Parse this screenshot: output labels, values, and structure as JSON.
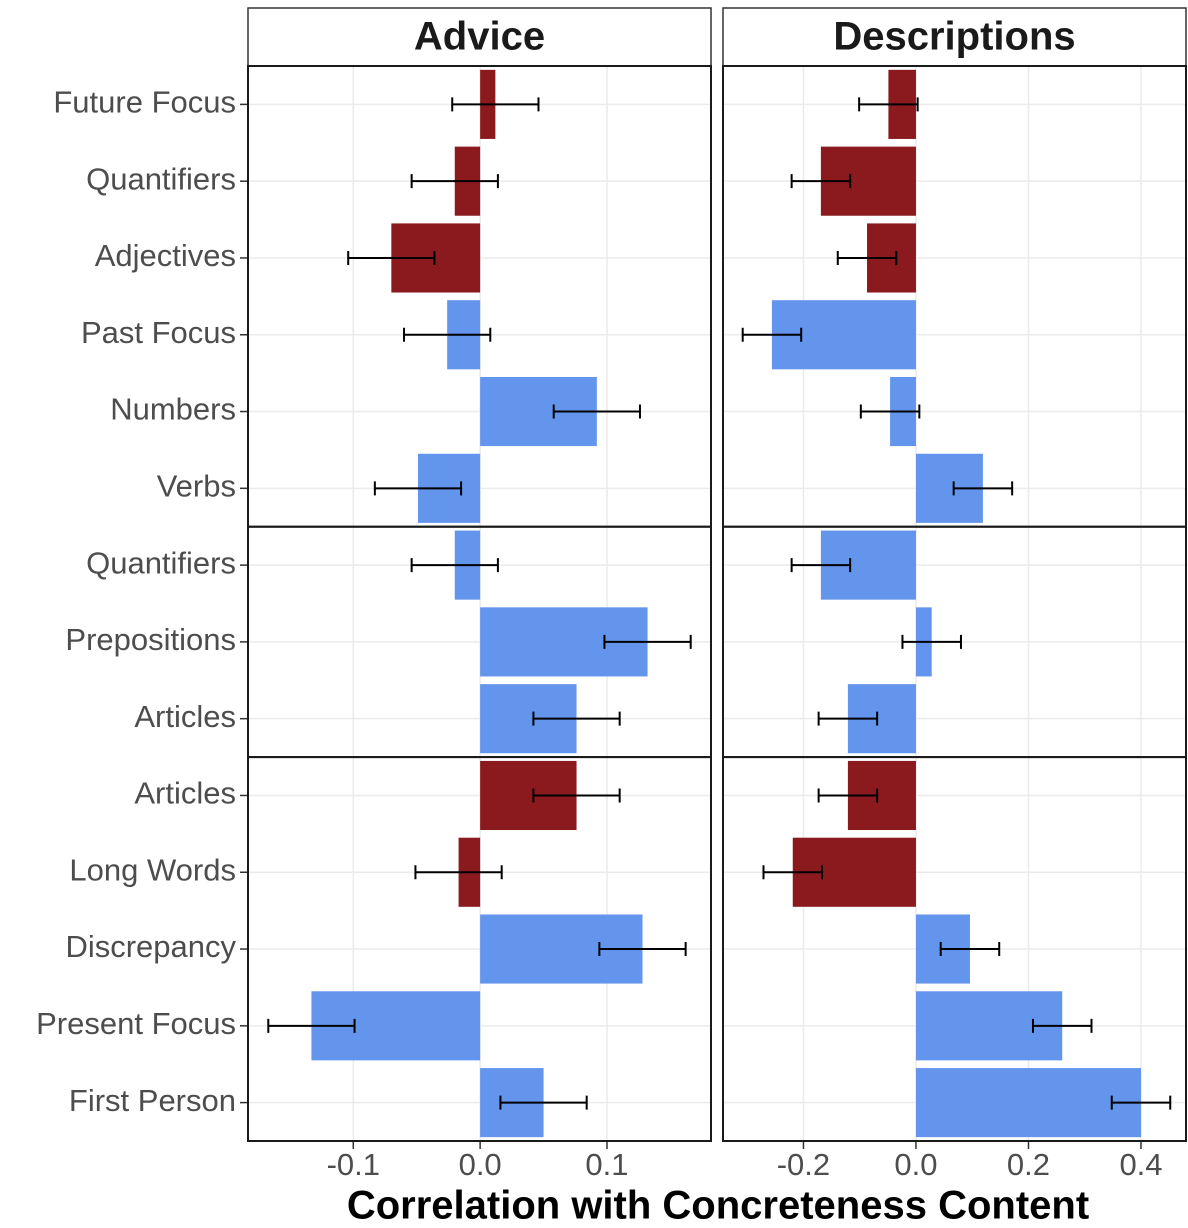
{
  "chart_data": {
    "type": "bar",
    "x_label": "Correlation with Concreteness Content",
    "category_groups": [
      [
        "Future Focus",
        "Quantifiers",
        "Adjectives",
        "Past Focus",
        "Numbers",
        "Verbs"
      ],
      [
        "Quantifiers",
        "Prepositions",
        "Articles"
      ],
      [
        "Articles",
        "Long Words",
        "Discrepancy",
        "Present Focus",
        "First Person"
      ]
    ],
    "colors": [
      [
        "#8b1a1f",
        "#8b1a1f",
        "#8b1a1f",
        "#6495ed",
        "#6495ed",
        "#6495ed"
      ],
      [
        "#6495ed",
        "#6495ed",
        "#6495ed"
      ],
      [
        "#8b1a1f",
        "#8b1a1f",
        "#6495ed",
        "#6495ed",
        "#6495ed"
      ]
    ],
    "grid": true,
    "panels": [
      {
        "title": "Advice",
        "values": [
          [
            0.012,
            -0.02,
            -0.07,
            -0.026,
            0.092,
            -0.049
          ],
          [
            -0.02,
            0.132,
            0.076
          ],
          [
            0.076,
            -0.017,
            0.128,
            -0.133,
            0.05
          ]
        ],
        "errors": [
          [
            0.034,
            0.034,
            0.034,
            0.034,
            0.034,
            0.034
          ],
          [
            0.034,
            0.034,
            0.034
          ],
          [
            0.034,
            0.034,
            0.034,
            0.034,
            0.034
          ]
        ],
        "xlim": [
          -0.183,
          0.182
        ],
        "xticks": [
          -0.1,
          {
            "value": 0,
            "label": "0.0"
          },
          0.1
        ]
      },
      {
        "title": "Descriptions",
        "values": [
          [
            -0.049,
            -0.169,
            -0.087,
            -0.256,
            -0.046,
            0.119
          ],
          [
            -0.169,
            0.028,
            -0.121
          ],
          [
            -0.121,
            -0.219,
            0.096,
            0.26,
            0.4
          ]
        ],
        "errors": [
          [
            0.052,
            0.052,
            0.052,
            0.052,
            0.052,
            0.052
          ],
          [
            0.052,
            0.052,
            0.052
          ],
          [
            0.052,
            0.052,
            0.052,
            0.052,
            0.052
          ]
        ],
        "xlim": [
          -0.343,
          0.48
        ],
        "xticks": [
          -0.2,
          {
            "value": 0,
            "label": "0.0"
          },
          0.2,
          0.4
        ]
      }
    ]
  }
}
